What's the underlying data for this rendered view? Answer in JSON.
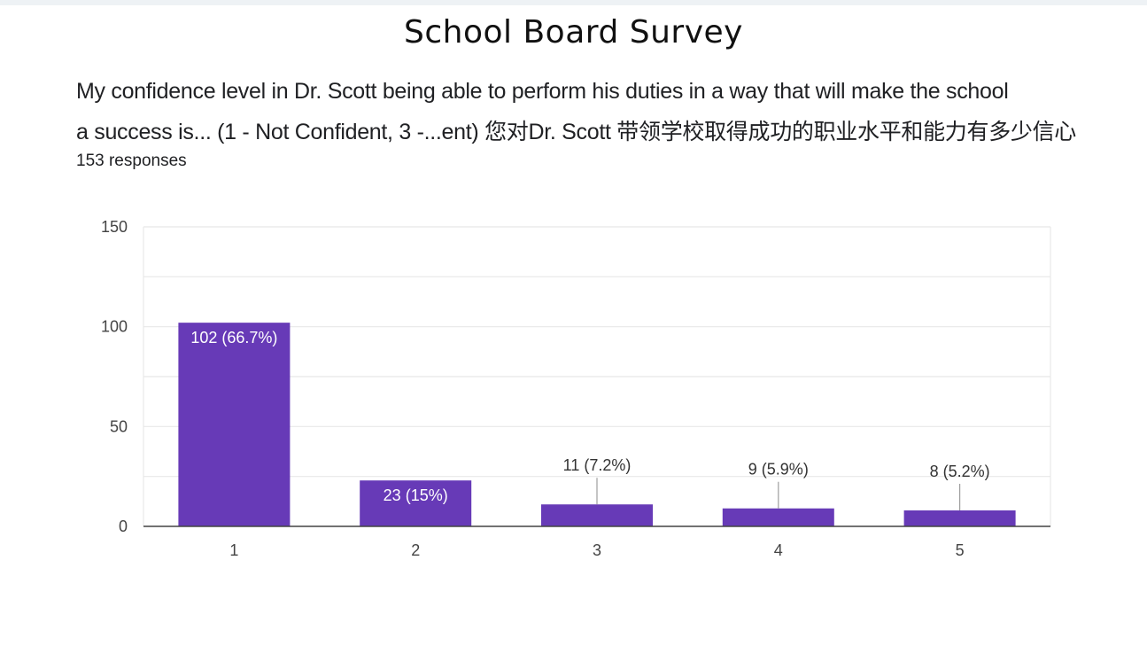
{
  "page": {
    "title": "School Board Survey",
    "question_line1": "My confidence level in Dr. Scott being able to perform his duties in a way that will make the school",
    "question_line2": "a success is... (1 - Not Confident, 3 -...ent) 您对Dr. Scott 带领学校取得成功的职业水平和能力有多少信心",
    "responses": "153 responses"
  },
  "chart_data": {
    "type": "bar",
    "categories": [
      "1",
      "2",
      "3",
      "4",
      "5"
    ],
    "values": [
      102,
      23,
      11,
      9,
      8
    ],
    "data_labels": [
      "102 (66.7%)",
      "23 (15%)",
      "11 (7.2%)",
      "9 (5.9%)",
      "8 (5.2%)"
    ],
    "ylim": [
      0,
      150
    ],
    "yticks": [
      0,
      50,
      100,
      150
    ],
    "grid": true,
    "bar_color": "#673ab7",
    "xlabel": "",
    "ylabel": ""
  }
}
